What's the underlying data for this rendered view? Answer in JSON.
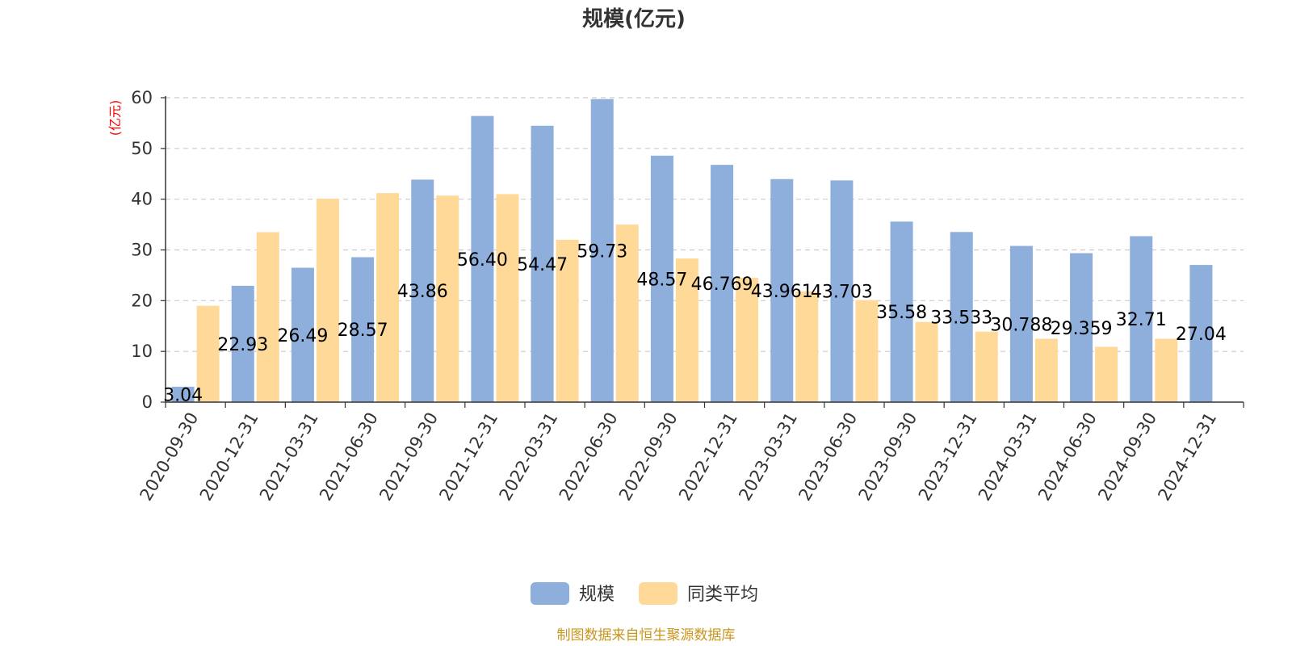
{
  "chart_data": {
    "type": "bar",
    "title": "规模(亿元)",
    "ylabel": "(亿元)",
    "ylim": [
      0,
      60
    ],
    "yticks": [
      0,
      10,
      20,
      30,
      40,
      50,
      60
    ],
    "grid": true,
    "legend_position": "bottom",
    "categories": [
      "2020-09-30",
      "2020-12-31",
      "2021-03-31",
      "2021-06-30",
      "2021-09-30",
      "2021-12-31",
      "2022-03-31",
      "2022-06-30",
      "2022-09-30",
      "2022-12-31",
      "2023-03-31",
      "2023-06-30",
      "2023-09-30",
      "2023-12-31",
      "2024-03-31",
      "2024-06-30",
      "2024-09-30",
      "2024-12-31"
    ],
    "series": [
      {
        "name": "规模",
        "color": "#8eaedb",
        "values": [
          3.04,
          22.93,
          26.49,
          28.57,
          43.86,
          56.4,
          54.47,
          59.73,
          48.57,
          46.769,
          43.961,
          43.703,
          35.58,
          33.533,
          30.788,
          29.359,
          32.71,
          27.04
        ],
        "labels": [
          "3.04",
          "22.93",
          "26.49",
          "28.57",
          "43.86",
          "56.40",
          "54.47",
          "59.73",
          "48.57",
          "46.769",
          "43.961",
          "43.703",
          "35.58",
          "33.533",
          "30.788",
          "29.359",
          "32.71",
          "27.04"
        ]
      },
      {
        "name": "同类平均",
        "color": "#ffd998",
        "values": [
          19.0,
          33.5,
          40.1,
          41.2,
          40.7,
          41.0,
          32.0,
          35.0,
          28.3,
          24.5,
          21.8,
          20.1,
          15.8,
          13.9,
          12.5,
          10.9,
          12.5,
          null
        ]
      }
    ],
    "source": "制图数据来自恒生聚源数据库"
  }
}
